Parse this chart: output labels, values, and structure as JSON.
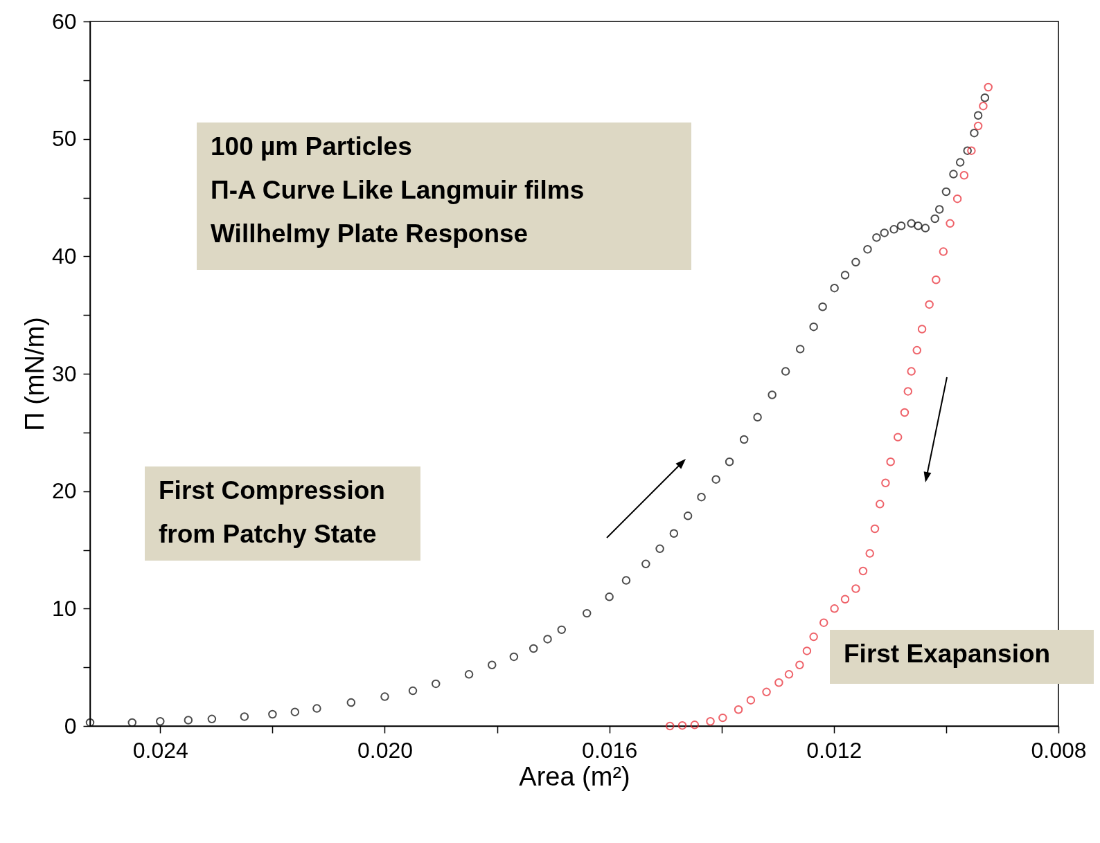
{
  "chart_data": {
    "type": "scatter",
    "xlabel": "Area (m²)",
    "ylabel": "Π (mN/m)",
    "marker": "circle",
    "grid": false,
    "xlim": [
      0.02525,
      0.008
    ],
    "ylim": [
      0,
      60
    ],
    "xticks": [
      0.024,
      {
        "value": 0.022,
        "label": null
      },
      {
        "value": 0.02,
        "label": "0.020"
      },
      {
        "value": 0.018,
        "label": null
      },
      0.016,
      {
        "value": 0.014,
        "label": null
      },
      0.012,
      {
        "value": 0.01,
        "label": null
      },
      0.008
    ],
    "yticks": [
      0,
      {
        "value": 5,
        "label": null
      },
      10,
      {
        "value": 15,
        "label": null
      },
      20,
      {
        "value": 25,
        "label": null
      },
      30,
      {
        "value": 35,
        "label": null
      },
      40,
      {
        "value": 45,
        "label": null
      },
      50,
      {
        "value": 55,
        "label": null
      },
      60
    ],
    "series": [
      {
        "color": "#000000",
        "x": [
          0.02525,
          0.0245,
          0.024,
          0.0235,
          0.02308,
          0.0225,
          0.022,
          0.0216,
          0.02121,
          0.0206,
          0.02,
          0.0195,
          0.01909,
          0.0185,
          0.01809,
          0.0177,
          0.01735,
          0.0171,
          0.01685,
          0.0164,
          0.016,
          0.0157,
          0.01535,
          0.0151,
          0.01485,
          0.0146,
          0.01436,
          0.0141,
          0.01386,
          0.0136,
          0.01336,
          0.0131,
          0.01286,
          0.0126,
          0.01236,
          0.0122,
          0.01199,
          0.0118,
          0.01161,
          0.0114,
          0.01124,
          0.0111,
          0.01093,
          0.0108,
          0.01062,
          0.0105,
          0.01037,
          0.0102,
          0.01012,
          0.01,
          0.00987,
          0.00975,
          0.00962,
          0.0095,
          0.00943,
          0.00931
        ],
        "values": [
          0.3,
          0.3,
          0.4,
          0.5,
          0.6,
          0.8,
          1.0,
          1.2,
          1.5,
          2.0,
          2.5,
          3.0,
          3.6,
          4.4,
          5.2,
          5.9,
          6.6,
          7.4,
          8.2,
          9.6,
          11.0,
          12.4,
          13.8,
          15.1,
          16.4,
          17.9,
          19.5,
          21.0,
          22.5,
          24.4,
          26.3,
          28.2,
          30.2,
          32.1,
          34.0,
          35.7,
          37.3,
          38.4,
          39.5,
          40.6,
          41.6,
          42.0,
          42.3,
          42.6,
          42.8,
          42.6,
          42.4,
          43.2,
          44.0,
          45.5,
          47.0,
          48.0,
          49.0,
          50.5,
          52.0,
          53.5
        ]
      },
      {
        "color": "#e8202a",
        "x": [
          0.00925,
          0.00934,
          0.00943,
          0.00955,
          0.00968,
          0.0098,
          0.00993,
          0.01005,
          0.01018,
          0.0103,
          0.01043,
          0.01052,
          0.01062,
          0.01068,
          0.01074,
          0.01086,
          0.01099,
          0.01108,
          0.01118,
          0.01127,
          0.01136,
          0.01148,
          0.01161,
          0.0118,
          0.01199,
          0.01218,
          0.01236,
          0.01248,
          0.01261,
          0.0128,
          0.01298,
          0.0132,
          0.01348,
          0.0137,
          0.01398,
          0.0142,
          0.01448,
          0.0147,
          0.01492
        ],
        "values": [
          54.4,
          52.8,
          51.1,
          49.0,
          46.9,
          44.9,
          42.8,
          40.4,
          38.0,
          35.9,
          33.8,
          32.0,
          30.2,
          28.5,
          26.7,
          24.6,
          22.5,
          20.7,
          18.9,
          16.8,
          14.7,
          13.2,
          11.7,
          10.8,
          10.0,
          8.8,
          7.6,
          6.4,
          5.2,
          4.4,
          3.7,
          2.9,
          2.2,
          1.4,
          0.7,
          0.4,
          0.1,
          0.05,
          0
        ]
      }
    ],
    "annotations": [
      "100 µm Particles\nΠ-A Curve Like Langmuir films\nWillhelmy Plate Response",
      "First Compression\nfrom Patchy State",
      "First Exapansion"
    ]
  }
}
